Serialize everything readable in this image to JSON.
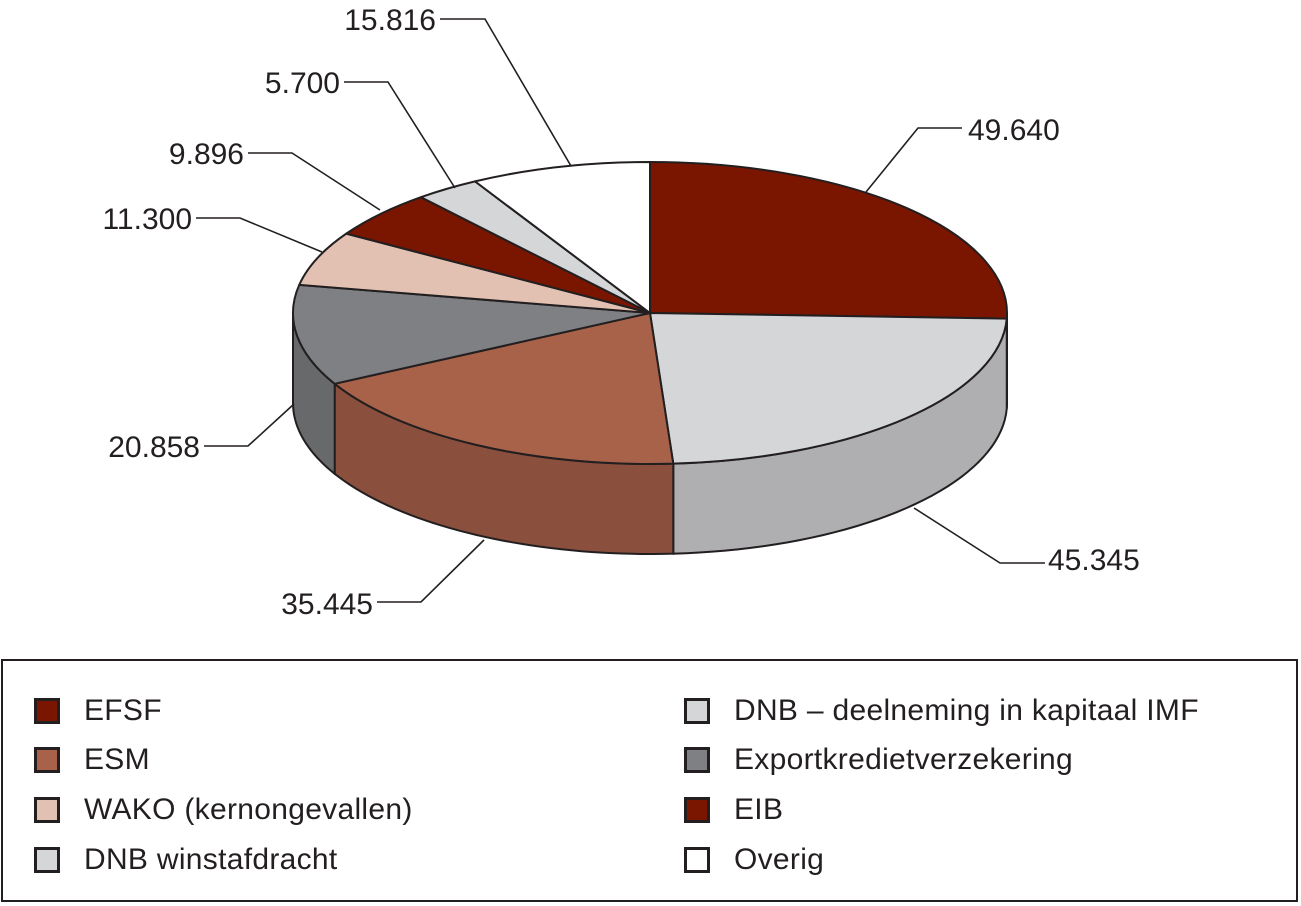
{
  "chart_data": {
    "type": "pie",
    "title": "",
    "series": [
      {
        "label": "EFSF",
        "value": 49640,
        "display": "49.640",
        "color": "#7a1500"
      },
      {
        "label": "DNB – deelneming in kapitaal IMF",
        "value": 45345,
        "display": "45.345",
        "color": "#d5d6d8"
      },
      {
        "label": "ESM",
        "value": 35445,
        "display": "35.445",
        "color": "#a8624a"
      },
      {
        "label": "Exportkredietverzekering",
        "value": 20858,
        "display": "20.858",
        "color": "#7e8083"
      },
      {
        "label": "WAKO (kernongevallen)",
        "value": 11300,
        "display": "11.300",
        "color": "#e2c1b2"
      },
      {
        "label": "EIB",
        "value": 9896,
        "display": "9.896",
        "color": "#7a1500"
      },
      {
        "label": "DNB winstafdracht",
        "value": 5700,
        "display": "5.700",
        "color": "#d5d6d8"
      },
      {
        "label": "Overig",
        "value": 15816,
        "display": "15.816",
        "color": "#ffffff"
      }
    ],
    "legend_position": "bottom",
    "legend": {
      "left_column": [
        "EFSF",
        "ESM",
        "WAKO (kernongevallen)",
        "DNB winstafdracht"
      ],
      "right_column": [
        "DNB – deelneming in kapitaal IMF",
        "Exportkredietverzekering",
        "EIB",
        "Overig"
      ]
    }
  }
}
